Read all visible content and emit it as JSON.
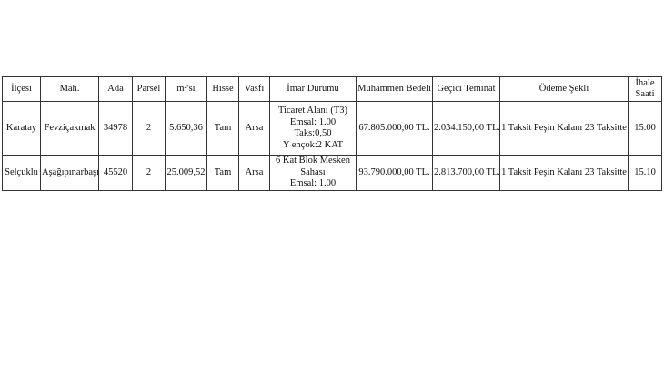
{
  "table": {
    "headers": [
      "İlçesi",
      "Mah.",
      "Ada",
      "Parsel",
      "m²'si",
      "Hisse",
      "Vasfı",
      "İmar Durumu",
      "Muhammen Bedeli",
      "Geçici Teminat",
      "Ödeme Şekli",
      "İhale Saati"
    ],
    "header_last_lines": [
      "İhale",
      "Saati"
    ],
    "rows": [
      {
        "ilce": "Karatay",
        "mah": "Fevziçakmak",
        "ada": "34978",
        "parsel": "2",
        "m2": "5.650,36",
        "hisse": "Tam",
        "vasfi": "Arsa",
        "imar": [
          "Ticaret Alanı (T3)",
          "Emsal: 1.00",
          "Taks:0,50",
          "Y ençok:2 KAT"
        ],
        "bedel": "67.805.000,00 TL.",
        "teminat": "2.034.150,00 TL.",
        "odeme": "1 Taksit Peşin Kalanı 23 Taksitte",
        "saat": "15.00"
      },
      {
        "ilce": "Selçuklu",
        "mah": "Aşağıpınarbaşı",
        "ada": "45520",
        "parsel": "2",
        "m2": "25.009,52",
        "hisse": "Tam",
        "vasfi": "Arsa",
        "imar": [
          "6 Kat Blok Mesken",
          "Sahası",
          "Emsal: 1.00"
        ],
        "bedel": "93.790.000,00 TL.",
        "teminat": "2.813.700,00 TL.",
        "odeme": "1 Taksit Peşin Kalanı 23 Taksitte",
        "saat": "15.10"
      }
    ]
  }
}
